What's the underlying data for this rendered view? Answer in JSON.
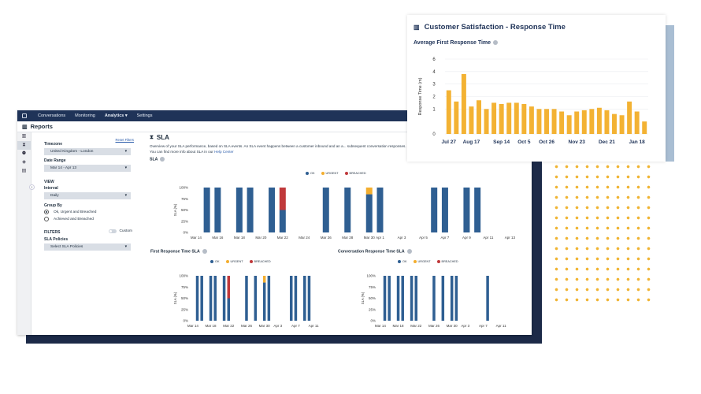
{
  "nav": {
    "items": [
      "Conversations",
      "Monitoring",
      "Analytics ▾",
      "Settings"
    ]
  },
  "page_title": "Reports",
  "filters": {
    "reset_label": "Reset Filters",
    "timezone_label": "Timezone",
    "timezone_value": "United Kingdom - London",
    "date_range_label": "Date Range",
    "date_range_value": "Mar 14 - Apr 13",
    "view_label": "VIEW",
    "interval_label": "Interval",
    "interval_value": "Daily",
    "group_by_label": "Group By",
    "group_options": [
      "Ok, Urgent and Breached",
      "Achieved and Breached"
    ],
    "filters_label": "FILTERS",
    "custom_label": "Custom",
    "sla_policies_label": "SLA Policies",
    "sla_policies_placeholder": "Select SLA Policies"
  },
  "sla": {
    "title": "SLA",
    "description": "Overview of your SLA performance, based on SLA events. An SLA event happens between a customer inbound and an a... subsequent conversation responses. You can find more info about SLA in our",
    "help_link": "Help Center",
    "section_label": "SLA"
  },
  "legend": [
    "OK",
    "URGENT",
    "BREACHED"
  ],
  "colors": {
    "ok": "#2f5f92",
    "urgent": "#f3ae2f",
    "breached": "#c0393b",
    "nav": "#1f3358",
    "accent": "#f3b233"
  },
  "chart_data": [
    {
      "type": "bar",
      "title": "",
      "ylabel": "SLA (%)",
      "y_ticks": [
        "100%",
        "75%",
        "50%",
        "25%",
        "0%"
      ],
      "x_tick_labels": [
        "Mar 14",
        "Mar 16",
        "Mar 18",
        "Mar 20",
        "Mar 22",
        "Mar 24",
        "Mar 26",
        "Mar 28",
        "Mar 30",
        "Apr 1",
        "Apr 3",
        "Apr 5",
        "Apr 7",
        "Apr 9",
        "Apr 11",
        "Apr 13"
      ],
      "stacked": true,
      "categories": [
        "Mar 14",
        "Mar 15",
        "Mar 16",
        "Mar 17",
        "Mar 18",
        "Mar 19",
        "Mar 20",
        "Mar 21",
        "Mar 22",
        "Mar 23",
        "Mar 24",
        "Mar 25",
        "Mar 26",
        "Mar 27",
        "Mar 28",
        "Mar 29",
        "Mar 30",
        "Mar 31",
        "Apr 1",
        "Apr 2",
        "Apr 3",
        "Apr 4",
        "Apr 5",
        "Apr 6",
        "Apr 7",
        "Apr 8",
        "Apr 9",
        "Apr 10",
        "Apr 11",
        "Apr 12",
        "Apr 13"
      ],
      "series": [
        {
          "name": "OK",
          "values": [
            0,
            100,
            100,
            0,
            100,
            100,
            0,
            100,
            50,
            0,
            0,
            0,
            100,
            0,
            100,
            0,
            85,
            100,
            0,
            0,
            0,
            0,
            100,
            100,
            0,
            100,
            100,
            0,
            0,
            0,
            0
          ]
        },
        {
          "name": "URGENT",
          "values": [
            0,
            0,
            0,
            0,
            0,
            0,
            0,
            0,
            0,
            0,
            0,
            0,
            0,
            0,
            0,
            0,
            15,
            0,
            0,
            0,
            0,
            0,
            0,
            0,
            0,
            0,
            0,
            0,
            0,
            0,
            0
          ]
        },
        {
          "name": "BREACHED",
          "values": [
            0,
            0,
            0,
            0,
            0,
            0,
            0,
            0,
            50,
            0,
            0,
            0,
            0,
            0,
            0,
            0,
            0,
            0,
            0,
            0,
            0,
            0,
            0,
            0,
            0,
            0,
            0,
            0,
            0,
            0,
            0
          ]
        }
      ],
      "ylim": [
        0,
        100
      ]
    },
    {
      "type": "bar",
      "title": "First Response Time SLA",
      "ylabel": "SLA (%)",
      "y_ticks": [
        "100%",
        "75%",
        "50%",
        "25%",
        "0%"
      ],
      "x_tick_labels": [
        "Mar 14",
        "Mar 18",
        "Mar 22",
        "Mar 26",
        "Mar 30",
        "Apr 3",
        "Apr 7",
        "Apr 11"
      ],
      "stacked": true,
      "categories": [
        "Mar 14",
        "Mar 15",
        "Mar 16",
        "Mar 17",
        "Mar 18",
        "Mar 19",
        "Mar 20",
        "Mar 21",
        "Mar 22",
        "Mar 23",
        "Mar 24",
        "Mar 25",
        "Mar 26",
        "Mar 27",
        "Mar 28",
        "Mar 29",
        "Mar 30",
        "Mar 31",
        "Apr 1",
        "Apr 2",
        "Apr 3",
        "Apr 4",
        "Apr 5",
        "Apr 6",
        "Apr 7",
        "Apr 8",
        "Apr 9",
        "Apr 10",
        "Apr 11",
        "Apr 12",
        "Apr 13"
      ],
      "series": [
        {
          "name": "OK",
          "values": [
            0,
            100,
            100,
            0,
            100,
            100,
            0,
            100,
            50,
            0,
            0,
            0,
            100,
            0,
            100,
            0,
            85,
            100,
            0,
            0,
            0,
            0,
            100,
            100,
            0,
            100,
            100,
            0,
            0,
            0,
            0
          ]
        },
        {
          "name": "URGENT",
          "values": [
            0,
            0,
            0,
            0,
            0,
            0,
            0,
            0,
            0,
            0,
            0,
            0,
            0,
            0,
            0,
            0,
            15,
            0,
            0,
            0,
            0,
            0,
            0,
            0,
            0,
            0,
            0,
            0,
            0,
            0,
            0
          ]
        },
        {
          "name": "BREACHED",
          "values": [
            0,
            0,
            0,
            0,
            0,
            0,
            0,
            0,
            50,
            0,
            0,
            0,
            0,
            0,
            0,
            0,
            0,
            0,
            0,
            0,
            0,
            0,
            0,
            0,
            0,
            0,
            0,
            0,
            0,
            0,
            0
          ]
        }
      ],
      "ylim": [
        0,
        100
      ]
    },
    {
      "type": "bar",
      "title": "Conversation Response Time SLA",
      "ylabel": "SLA (%)",
      "y_ticks": [
        "100%",
        "75%",
        "50%",
        "25%",
        "0%"
      ],
      "x_tick_labels": [
        "Mar 14",
        "Mar 18",
        "Mar 22",
        "Mar 26",
        "Mar 30",
        "Apr 3",
        "Apr 7",
        "Apr 11"
      ],
      "stacked": true,
      "categories": [
        "Mar 14",
        "Mar 15",
        "Mar 16",
        "Mar 17",
        "Mar 18",
        "Mar 19",
        "Mar 20",
        "Mar 21",
        "Mar 22",
        "Mar 23",
        "Mar 24",
        "Mar 25",
        "Mar 26",
        "Mar 27",
        "Mar 28",
        "Mar 29",
        "Mar 30",
        "Mar 31",
        "Apr 1",
        "Apr 2",
        "Apr 3",
        "Apr 4",
        "Apr 5",
        "Apr 6",
        "Apr 7",
        "Apr 8",
        "Apr 9",
        "Apr 10",
        "Apr 11",
        "Apr 12",
        "Apr 13"
      ],
      "series": [
        {
          "name": "OK",
          "values": [
            0,
            100,
            100,
            0,
            100,
            100,
            0,
            100,
            100,
            0,
            0,
            0,
            100,
            0,
            100,
            0,
            100,
            100,
            0,
            0,
            0,
            0,
            0,
            0,
            100,
            0,
            0,
            0,
            0,
            0,
            0
          ]
        },
        {
          "name": "URGENT",
          "values": [
            0,
            0,
            0,
            0,
            0,
            0,
            0,
            0,
            0,
            0,
            0,
            0,
            0,
            0,
            0,
            0,
            0,
            0,
            0,
            0,
            0,
            0,
            0,
            0,
            0,
            0,
            0,
            0,
            0,
            0,
            0
          ]
        },
        {
          "name": "BREACHED",
          "values": [
            0,
            0,
            0,
            0,
            0,
            0,
            0,
            0,
            0,
            0,
            0,
            0,
            0,
            0,
            0,
            0,
            0,
            0,
            0,
            0,
            0,
            0,
            0,
            0,
            0,
            0,
            0,
            0,
            0,
            0,
            0
          ]
        }
      ],
      "ylim": [
        0,
        100
      ]
    },
    {
      "type": "bar",
      "title": "Customer Satisfaction - Response Time",
      "subtitle": "Average First Response Time",
      "ylabel": "Response Time (m)",
      "y_ticks": [
        "6",
        "4",
        "3",
        "2",
        "1",
        "0"
      ],
      "x_tick_labels": [
        "Jul 27",
        "Aug 17",
        "Sep 14",
        "Oct 5",
        "Oct 26",
        "Nov 23",
        "Dec 21",
        "Jan 18"
      ],
      "values": [
        3.5,
        2.6,
        4.8,
        2.2,
        2.7,
        2.0,
        2.5,
        2.4,
        2.5,
        2.5,
        2.4,
        2.2,
        2.0,
        2.0,
        2.0,
        1.8,
        1.5,
        1.8,
        1.9,
        2.0,
        2.1,
        1.9,
        1.6,
        1.5,
        2.6,
        1.8,
        1.0
      ],
      "ylim": [
        0,
        6
      ],
      "color": "#f3b233"
    }
  ]
}
